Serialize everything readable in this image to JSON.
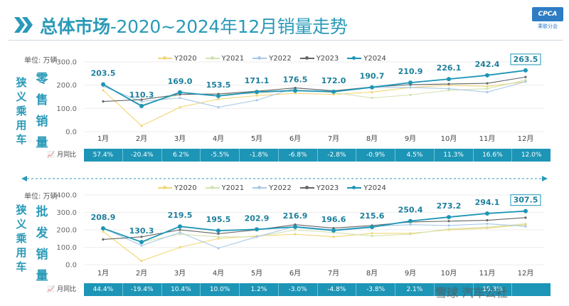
{
  "header": {
    "title_bold": "总体市场",
    "title_rest": "-2020~2024年12月销量走势",
    "logo_text": "CPCA",
    "logo_sub": "乘联分会"
  },
  "colors": {
    "Y2020": "#f2d675",
    "Y2021": "#d2e2b0",
    "Y2022": "#a9c9e6",
    "Y2023": "#666666",
    "Y2024": "#1d95b6",
    "accent": "#2a9ab8"
  },
  "watermark": "雪球 汽车公社",
  "chart_data": [
    {
      "type": "line",
      "market_title": "狭义乘用车",
      "metric_title": "零售销量",
      "unit": "单位: 万辆",
      "ylim": [
        0,
        300
      ],
      "yticks": [
        "0.0",
        "100.0",
        "200.0",
        "300.0"
      ],
      "categories": [
        "1月",
        "2月",
        "3月",
        "4月",
        "5月",
        "6月",
        "7月",
        "8月",
        "9月",
        "10月",
        "11月",
        "12月"
      ],
      "series": [
        {
          "name": "Y2020",
          "values": [
            178,
            25,
            105,
            140,
            155,
            165,
            160,
            170,
            190,
            200,
            195,
            215
          ]
        },
        {
          "name": "Y2021",
          "values": [
            200,
            115,
            160,
            162,
            164,
            180,
            168,
            145,
            158,
            178,
            185,
            222
          ]
        },
        {
          "name": "Y2022",
          "values": [
            195,
            130,
            145,
            105,
            135,
            188,
            175,
            190,
            190,
            185,
            170,
            215
          ]
        },
        {
          "name": "Y2023",
          "values": [
            130,
            138,
            160,
            162,
            174,
            188,
            176,
            192,
            202,
            205,
            208,
            235
          ]
        },
        {
          "name": "Y2024",
          "values": [
            203.5,
            110.3,
            169.0,
            153.5,
            171.1,
            176.5,
            172.0,
            190.7,
            210.9,
            226.1,
            242.4,
            263.5
          ]
        }
      ],
      "data_labels": [
        "203.5",
        "110.3",
        "169.0",
        "153.5",
        "171.1",
        "176.5",
        "172.0",
        "190.7",
        "210.9",
        "226.1",
        "242.4",
        "263.5"
      ],
      "yoy_label": "月同比",
      "yoy": [
        "57.4%",
        "-20.4%",
        "6.2%",
        "-5.5%",
        "-1.8%",
        "-6.8%",
        "-2.8%",
        "-0.9%",
        "4.5%",
        "11.3%",
        "16.6%",
        "12.0%"
      ]
    },
    {
      "type": "line",
      "market_title": "狭义乘用车",
      "metric_title": "批发销量",
      "unit": "单位: 万辆",
      "ylim": [
        0,
        400
      ],
      "yticks": [
        "0.0",
        "100.0",
        "200.0",
        "300.0",
        "400.0"
      ],
      "categories": [
        "1月",
        "2月",
        "3月",
        "4月",
        "5月",
        "6月",
        "7月",
        "8月",
        "9月",
        "10月",
        "11月",
        "12月"
      ],
      "series": [
        {
          "name": "Y2020",
          "values": [
            190,
            22,
            100,
            150,
            165,
            175,
            160,
            180,
            180,
            200,
            210,
            230
          ]
        },
        {
          "name": "Y2021",
          "values": [
            205,
            130,
            175,
            160,
            160,
            200,
            185,
            165,
            175,
            205,
            215,
            235
          ]
        },
        {
          "name": "Y2022",
          "values": [
            210,
            110,
            185,
            95,
            160,
            220,
            200,
            220,
            230,
            225,
            235,
            220
          ]
        },
        {
          "name": "Y2023",
          "values": [
            145,
            160,
            200,
            178,
            200,
            230,
            210,
            225,
            245,
            250,
            255,
            270
          ]
        },
        {
          "name": "Y2024",
          "values": [
            208.9,
            130.3,
            219.5,
            195.5,
            202.9,
            216.9,
            196.6,
            215.6,
            250.4,
            273.2,
            294.1,
            307.5
          ]
        }
      ],
      "data_labels": [
        "208.9",
        "130.3",
        "219.5",
        "195.5",
        "202.9",
        "216.9",
        "196.6",
        "215.6",
        "250.4",
        "273.2",
        "294.1",
        "307.5"
      ],
      "yoy_label": "月同比",
      "yoy": [
        "44.4%",
        "-19.4%",
        "10.4%",
        "10.0%",
        "1.2%",
        "-3.0%",
        "-4.8%",
        "-3.8%",
        "2.1%",
        "",
        "15.3%",
        ""
      ]
    }
  ]
}
